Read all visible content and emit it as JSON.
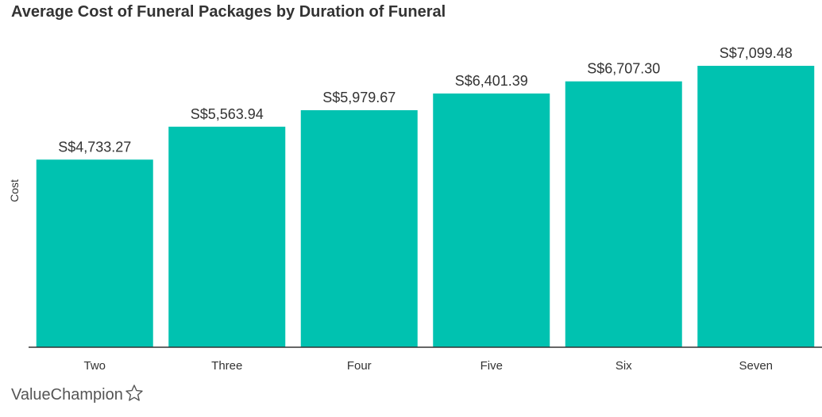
{
  "chart_data": {
    "type": "bar",
    "title": "Average Cost of Funeral Packages by Duration of Funeral",
    "xlabel": "",
    "ylabel": "Cost",
    "categories": [
      "Two",
      "Three",
      "Four",
      "Five",
      "Six",
      "Seven"
    ],
    "values": [
      4733.27,
      5563.94,
      5979.67,
      6401.39,
      6707.3,
      7099.48
    ],
    "value_labels": [
      "S$4,733.27",
      "S$5,563.94",
      "S$5,979.67",
      "S$6,401.39",
      "S$6,707.30",
      "S$7,099.48"
    ],
    "ylim": [
      0,
      8000
    ],
    "grid": false,
    "legend": "none",
    "bar_color": "#00C2B0",
    "axis_color": "#333333"
  },
  "branding": {
    "logo_text": "ValueChampion",
    "logo_icon": "star-outline-icon",
    "logo_color": "#555555"
  }
}
